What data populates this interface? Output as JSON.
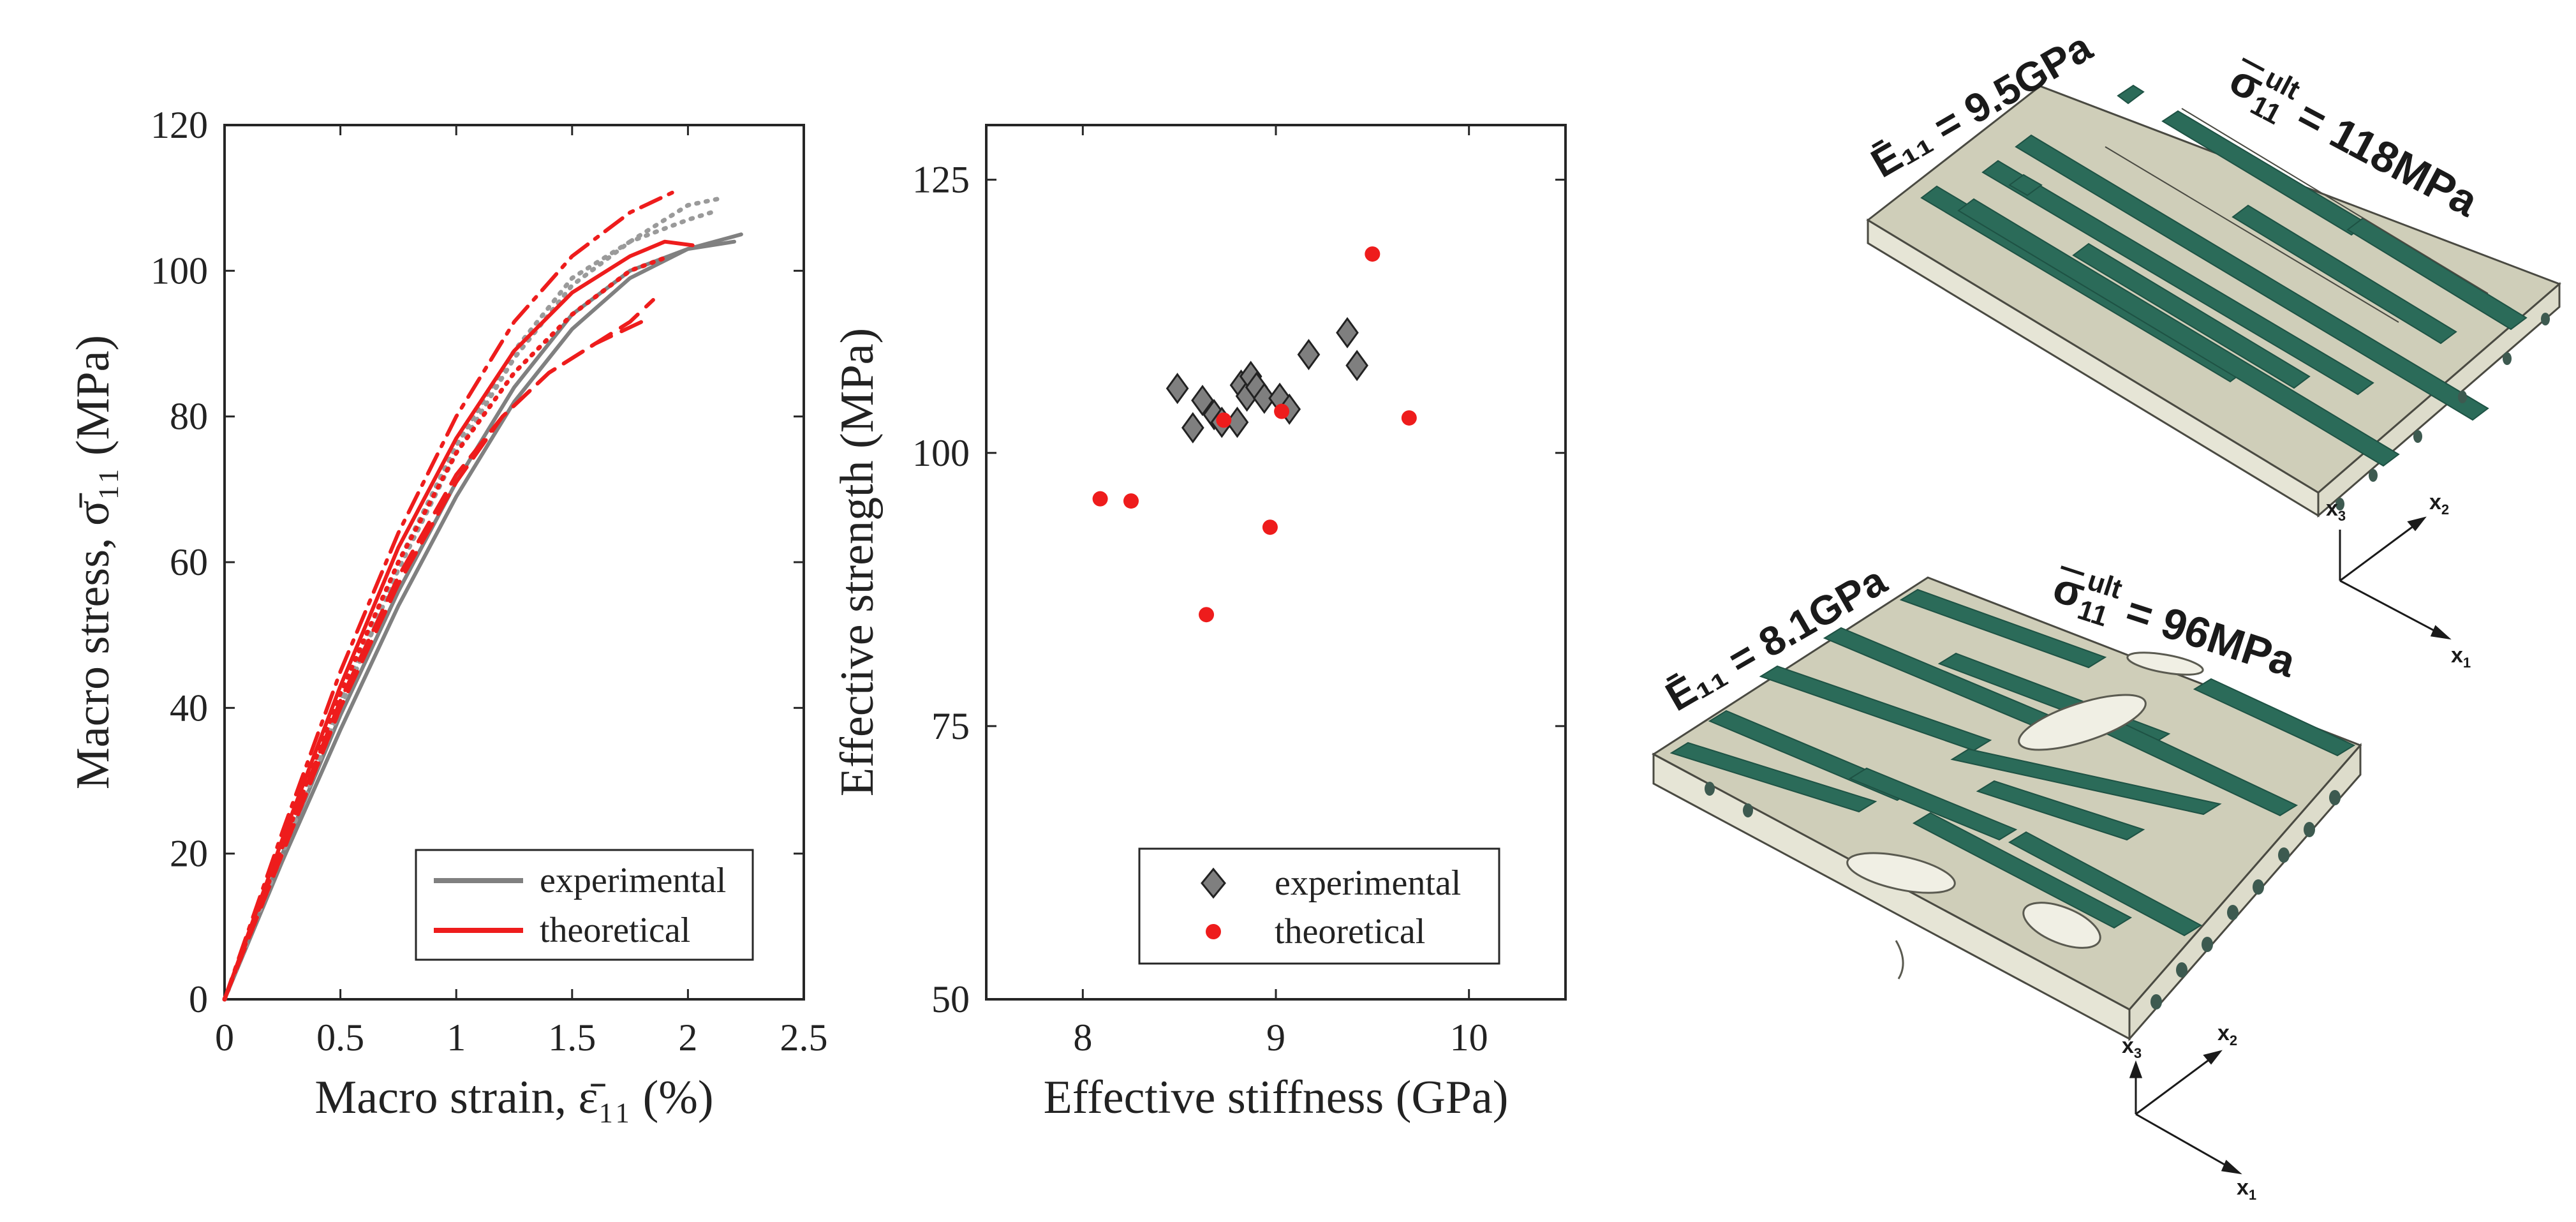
{
  "chart_data": [
    {
      "type": "line",
      "xlabel": "Macro strain, ε̄₁₁ (%)",
      "ylabel": "Macro stress, σ̄₁₁ (MPa)",
      "xlim": [
        0,
        2.5
      ],
      "ylim": [
        0,
        120
      ],
      "xticks": [
        0,
        0.5,
        1,
        1.5,
        2,
        2.5
      ],
      "xtick_labels": [
        "0",
        "0.5",
        "1",
        "1.5",
        "2",
        "2.5"
      ],
      "yticks": [
        0,
        20,
        40,
        60,
        80,
        100,
        120
      ],
      "ytick_labels": [
        "0",
        "20",
        "40",
        "60",
        "80",
        "100",
        "120"
      ],
      "grid": false,
      "legend_position": "bottom-right",
      "legend": [
        {
          "label": "experimental",
          "color": "#808080"
        },
        {
          "label": "theoretical",
          "color": "#ee1c1c"
        }
      ],
      "series": [
        {
          "group": "experimental",
          "color": "#808080",
          "style": "solid",
          "x": [
            0,
            0.25,
            0.5,
            0.75,
            1.0,
            1.25,
            1.5,
            1.75,
            2.0,
            2.23
          ],
          "y": [
            0,
            19,
            37,
            54,
            69,
            82,
            92,
            99,
            103,
            105
          ]
        },
        {
          "group": "experimental",
          "color": "#808080",
          "style": "solid",
          "x": [
            0,
            0.25,
            0.5,
            0.75,
            1.0,
            1.25,
            1.5,
            1.75,
            2.0,
            2.2
          ],
          "y": [
            0,
            20,
            39,
            56,
            71,
            84,
            94,
            100,
            103,
            104
          ]
        },
        {
          "group": "experimental",
          "color": "#9a9a9a",
          "style": "dotted",
          "x": [
            0,
            0.25,
            0.5,
            0.75,
            1.0,
            1.25,
            1.5,
            1.75,
            2.0,
            2.15
          ],
          "y": [
            0,
            20,
            40,
            59,
            75,
            88,
            98,
            104,
            109,
            110
          ]
        },
        {
          "group": "experimental",
          "color": "#9a9a9a",
          "style": "dotted",
          "x": [
            0,
            0.25,
            0.5,
            0.75,
            1.0,
            1.25,
            1.5,
            1.75,
            2.0,
            2.1
          ],
          "y": [
            0,
            21,
            41,
            60,
            76,
            89,
            99,
            104,
            107,
            108
          ]
        },
        {
          "group": "theoretical",
          "color": "#ee1c1c",
          "style": "dashdot",
          "x": [
            0,
            0.25,
            0.5,
            0.75,
            1.0,
            1.25,
            1.5,
            1.75,
            1.95
          ],
          "y": [
            0,
            23,
            45,
            64,
            80,
            93,
            102,
            108,
            111
          ]
        },
        {
          "group": "theoretical",
          "color": "#ee1c1c",
          "style": "solid",
          "x": [
            0,
            0.25,
            0.5,
            0.75,
            1.0,
            1.25,
            1.5,
            1.75,
            1.9,
            2.02
          ],
          "y": [
            0,
            22,
            43,
            62,
            77,
            89,
            97,
            102,
            104,
            103.5
          ]
        },
        {
          "group": "theoretical",
          "color": "#ee1c1c",
          "style": "dotted",
          "x": [
            0,
            0.25,
            0.5,
            0.75,
            1.0,
            1.25,
            1.5,
            1.75,
            1.92
          ],
          "y": [
            0,
            21,
            42,
            60,
            75,
            86,
            94,
            100,
            102
          ]
        },
        {
          "group": "theoretical",
          "color": "#ee1c1c",
          "style": "dashed",
          "x": [
            0,
            0.25,
            0.5,
            0.75,
            1.0,
            1.2,
            1.4,
            1.6,
            1.8
          ],
          "y": [
            0,
            21,
            41,
            58,
            72,
            80,
            86,
            90,
            93
          ]
        },
        {
          "group": "theoretical",
          "color": "#ee1c1c",
          "style": "dashed",
          "x": [
            0,
            0.25,
            0.5,
            0.75,
            1.0,
            1.2,
            1.4,
            1.6,
            1.75,
            1.85
          ],
          "y": [
            0,
            20,
            40,
            57,
            71,
            80,
            86,
            90,
            93,
            96
          ]
        }
      ]
    },
    {
      "type": "scatter",
      "xlabel": "Effective stiffness (GPa)",
      "ylabel": "Effective strength (MPa)",
      "xlim": [
        7.5,
        10.5
      ],
      "ylim": [
        50,
        130
      ],
      "xticks": [
        8,
        9,
        10
      ],
      "xtick_labels": [
        "8",
        "9",
        "10"
      ],
      "yticks": [
        50,
        75,
        100,
        125
      ],
      "ytick_labels": [
        "50",
        "75",
        "100",
        "125"
      ],
      "grid": false,
      "legend_position": "bottom-right",
      "legend": [
        {
          "label": "experimental",
          "marker": "diamond",
          "color": "#7f7f7f"
        },
        {
          "label": "theoretical",
          "marker": "circle",
          "color": "#ee1c1c"
        }
      ],
      "series": [
        {
          "name": "experimental",
          "marker": "diamond",
          "color": "#7f7f7f",
          "points": [
            [
              8.49,
              105.9
            ],
            [
              8.57,
              102.3
            ],
            [
              8.62,
              104.8
            ],
            [
              8.68,
              103.5
            ],
            [
              8.72,
              102.8
            ],
            [
              8.8,
              102.8
            ],
            [
              8.82,
              106.2
            ],
            [
              8.85,
              105.2
            ],
            [
              8.87,
              107.0
            ],
            [
              8.9,
              106.0
            ],
            [
              8.94,
              105.0
            ],
            [
              9.02,
              105.0
            ],
            [
              9.07,
              104.0
            ],
            [
              9.17,
              109.0
            ],
            [
              9.37,
              111.0
            ],
            [
              9.42,
              108.0
            ]
          ]
        },
        {
          "name": "theoretical",
          "marker": "circle",
          "color": "#ee1c1c",
          "points": [
            [
              8.09,
              95.8
            ],
            [
              8.25,
              95.6
            ],
            [
              8.64,
              85.2
            ],
            [
              8.73,
              103.0
            ],
            [
              8.97,
              93.2
            ],
            [
              9.03,
              103.8
            ],
            [
              9.5,
              118.2
            ],
            [
              9.69,
              103.2
            ]
          ]
        }
      ]
    }
  ],
  "panel_c": {
    "top": {
      "modulus_label": "Ē₁₁ = 9.5GPa",
      "strength_label": "118MPa"
    },
    "bottom": {
      "modulus_label": "Ē₁₁ = 8.1GPa",
      "strength_label": "96MPa"
    },
    "strength_symbol": "σ",
    "strength_subscript": "11",
    "strength_superscript": "ult",
    "axis_labels": {
      "x1": "x",
      "x1_sub": "1",
      "x2": "x",
      "x2_sub": "2",
      "x3": "x",
      "x3_sub": "3"
    },
    "colors": {
      "matrix_top": "#cfceb9",
      "matrix_side": "#e6e5d6",
      "fiber": "#2b6b59",
      "fiber_dark": "#1e5244"
    }
  }
}
